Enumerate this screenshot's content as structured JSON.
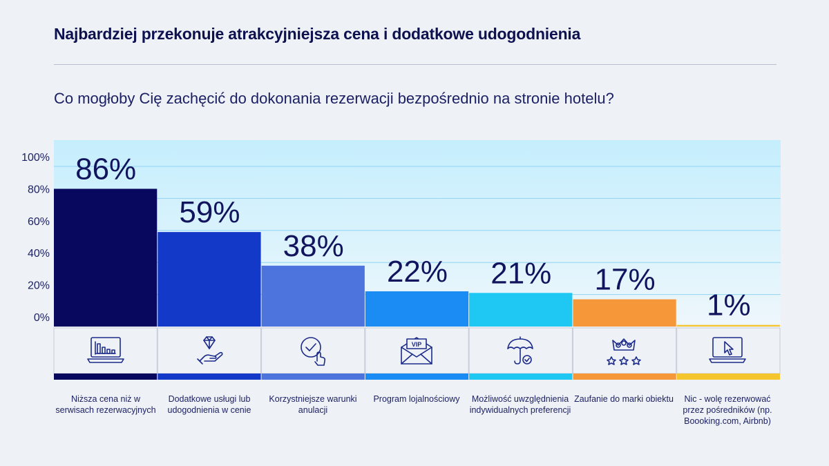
{
  "header": {
    "title": "Najbardziej przekonuje atrakcyjniejsza cena i dodatkowe udogodnienia",
    "question": "Co mogłoby Cię zachęcić do dokonania rezerwacji bezpośrednio na stronie hotelu?"
  },
  "chart_data": {
    "type": "bar",
    "title": "Co mogłoby Cię zachęcić do dokonania rezerwacji bezpośrednio na stronie hotelu?",
    "xlabel": "",
    "ylabel": "",
    "ylim": [
      0,
      100
    ],
    "yticks": [
      "0%",
      "20%",
      "40%",
      "60%",
      "80%",
      "100%"
    ],
    "grid": true,
    "categories": [
      "Niższa cena niż w serwisach rezerwacyjnych",
      "Dodatkowe usługi lub udogodnienia w cenie",
      "Korzystniejsze warunki anulacji",
      "Program lojalnościowy",
      "Możliwość uwzględnienia indywidualnych preferencji",
      "Zaufanie do marki obiektu",
      "Nic - wolę rezerwować przez pośredników (np. Boooking.com, Airbnb)"
    ],
    "values": [
      86,
      59,
      38,
      22,
      21,
      17,
      1
    ],
    "value_labels": [
      "86%",
      "59%",
      "38%",
      "22%",
      "21%",
      "17%",
      "1%"
    ],
    "colors": [
      "#08095e",
      "#1339c8",
      "#4d73dc",
      "#1c8cf5",
      "#1ec8f3",
      "#f6973a",
      "#f4c52c"
    ],
    "icons": [
      "laptop-chart-icon",
      "hand-diamond-icon",
      "check-hand-icon",
      "vip-envelope-icon",
      "umbrella-shield-icon",
      "crown-stars-icon",
      "laptop-cursor-icon"
    ]
  }
}
